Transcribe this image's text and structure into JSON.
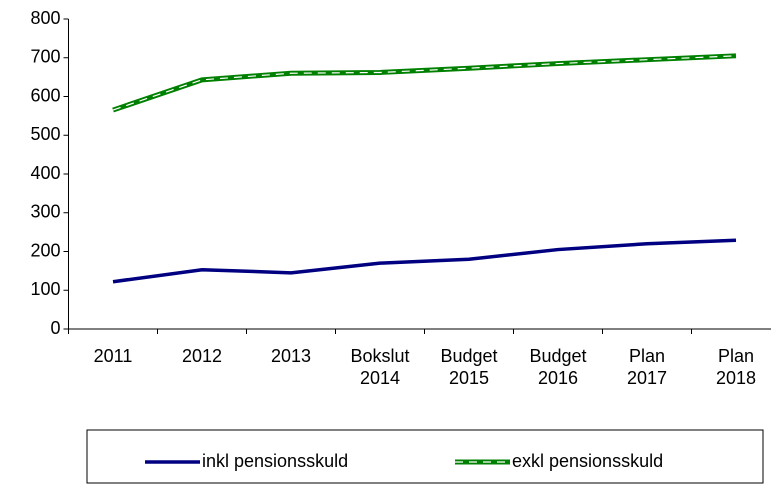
{
  "chart_data": {
    "type": "line",
    "categories": [
      "2011",
      "2012",
      "2013",
      "Bokslut 2014",
      "Budget 2015",
      "Budget 2016",
      "Plan 2017",
      "Plan 2018"
    ],
    "series": [
      {
        "name": "inkl pensionsskuld",
        "color": "#000080",
        "values": [
          122,
          153,
          145,
          170,
          180,
          205,
          220,
          229
        ]
      },
      {
        "name": "exkl pensionsskuld",
        "color": "#008000",
        "values": [
          565,
          643,
          660,
          662,
          673,
          685,
          695,
          705
        ]
      }
    ],
    "ylim": [
      0,
      800
    ],
    "yticks": [
      0,
      100,
      200,
      300,
      400,
      500,
      600,
      700,
      800
    ],
    "legend": "bottom"
  }
}
